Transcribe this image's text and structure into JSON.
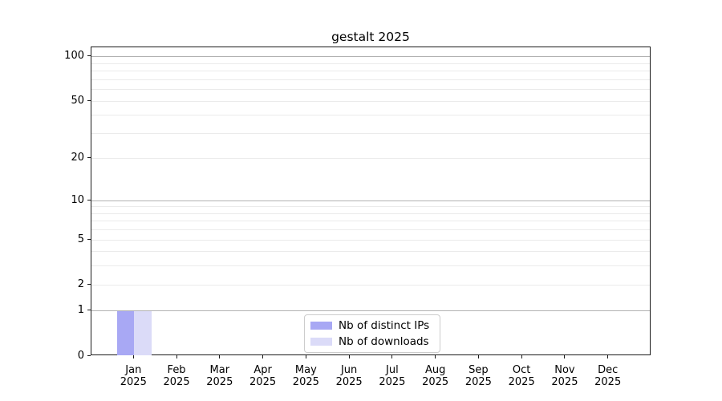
{
  "title": "gestalt 2025",
  "colors": {
    "bar_distinct_ips": "#a8a8f4",
    "bar_downloads": "#dbdbf8",
    "grid_major": "#b2b2b2",
    "grid_minor": "#ebebeb",
    "axis_spine": "#1a1a1a",
    "legend_border": "#cccccc",
    "text": "#000000"
  },
  "chart_data": {
    "type": "bar",
    "title": "gestalt 2025",
    "categories": [
      "Jan",
      "Feb",
      "Mar",
      "Apr",
      "May",
      "Jun",
      "Jul",
      "Aug",
      "Sep",
      "Oct",
      "Nov",
      "Dec"
    ],
    "x_year": "2025",
    "series": [
      {
        "name": "Nb of distinct IPs",
        "color": "#a8a8f4",
        "values": [
          1,
          0,
          0,
          0,
          0,
          0,
          0,
          0,
          0,
          0,
          0,
          0
        ]
      },
      {
        "name": "Nb of downloads",
        "color": "#dbdbf8",
        "values": [
          1,
          0,
          0,
          0,
          0,
          0,
          0,
          0,
          0,
          0,
          0,
          0
        ]
      }
    ],
    "y_scale": "log1p",
    "ylim": [
      0,
      116
    ],
    "y_ticks": [
      {
        "value": 0,
        "label": "0"
      },
      {
        "value": 1,
        "label": "1"
      },
      {
        "value": 2,
        "label": "2"
      },
      {
        "value": 5,
        "label": "5"
      },
      {
        "value": 10,
        "label": "10"
      },
      {
        "value": 20,
        "label": "20"
      },
      {
        "value": 50,
        "label": "50"
      },
      {
        "value": 100,
        "label": "100"
      }
    ],
    "y_major_gridlines": [
      1,
      10,
      100
    ],
    "y_minor_gridlines": [
      2,
      3,
      4,
      5,
      6,
      7,
      8,
      9,
      20,
      30,
      40,
      50,
      60,
      70,
      80,
      90
    ],
    "grid": true,
    "legend_position": "lower center"
  }
}
